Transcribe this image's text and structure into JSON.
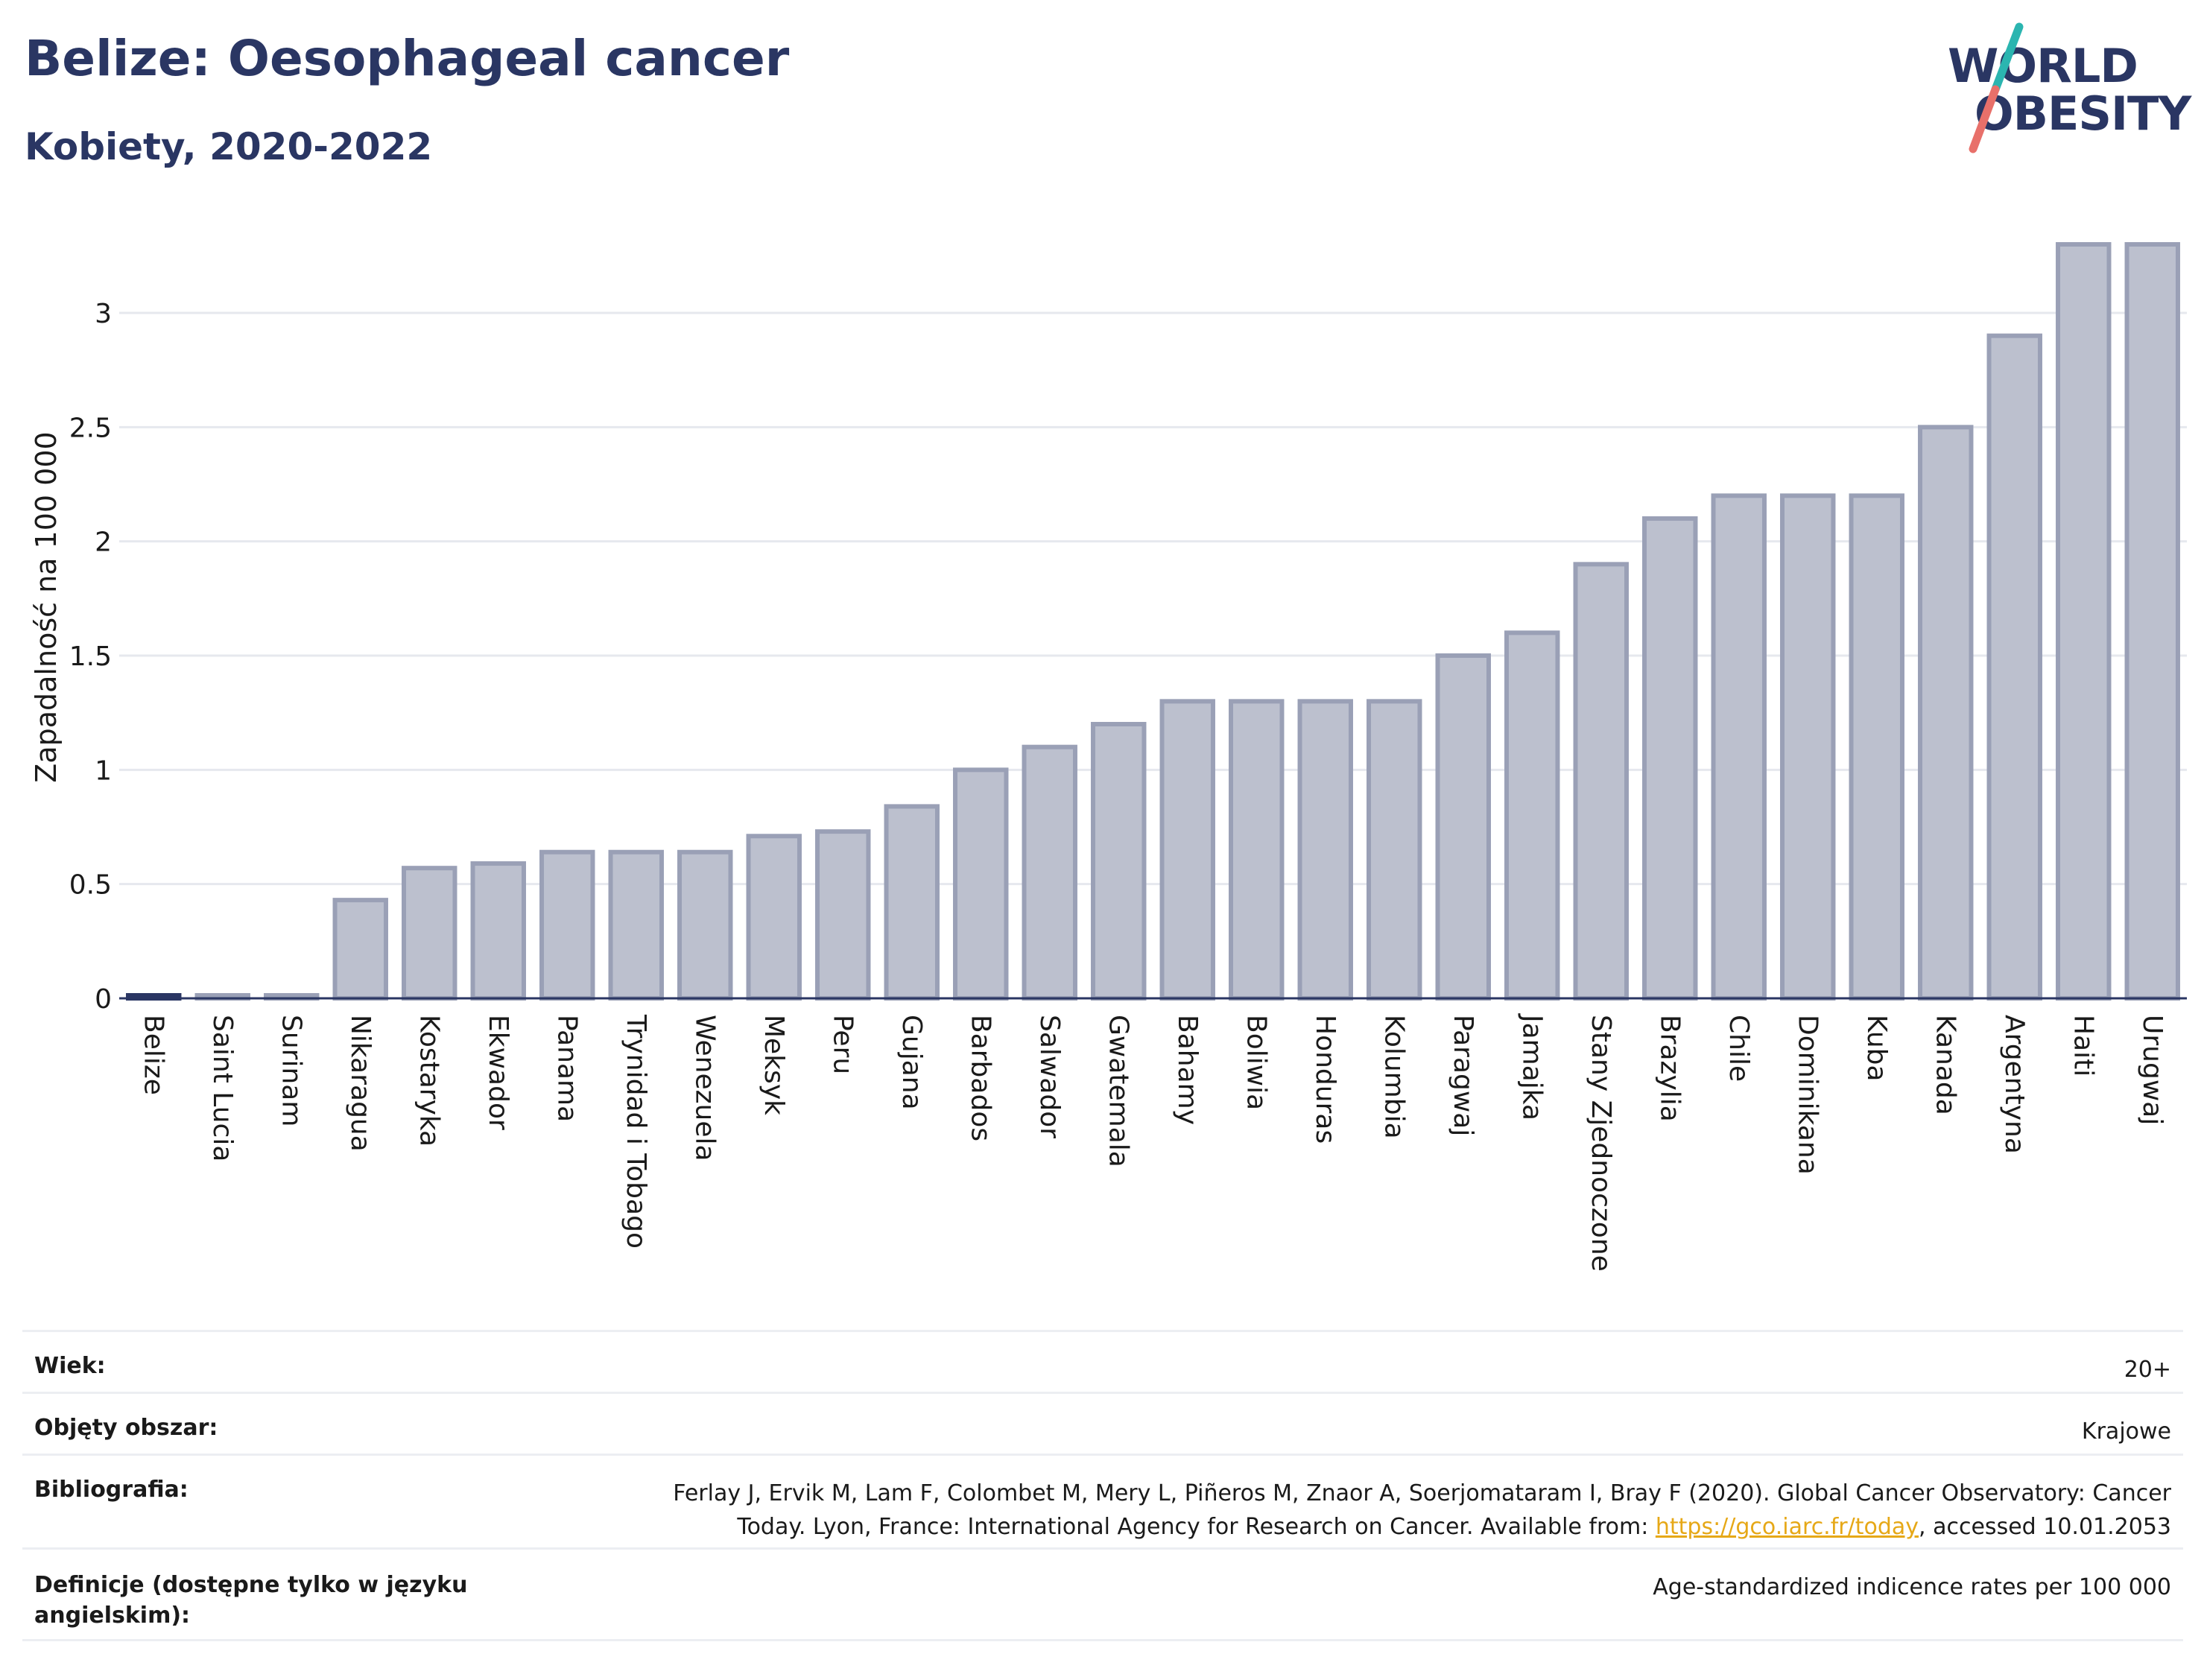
{
  "header": {
    "title": "Belize: Oesophageal cancer",
    "subtitle": "Kobiety, 2020-2022"
  },
  "logo": {
    "line1": "WORLD",
    "line2": "OBESITY",
    "colors": {
      "text": "#2a3663",
      "slash_top": "#2bb5b0",
      "slash_bottom": "#e8706a"
    }
  },
  "chart_data": {
    "type": "bar",
    "ylabel": "Zapadalność na 100 000",
    "xlabel": "",
    "ylim": [
      0,
      3.3
    ],
    "yticks": [
      0,
      0.5,
      1,
      1.5,
      2,
      2.5,
      3
    ],
    "ytick_labels": [
      "0",
      "0.5",
      "1",
      "1.5",
      "2",
      "2.5",
      "3"
    ],
    "grid": true,
    "highlight_category": "Belize",
    "colors": {
      "bar": "#bcc0ce",
      "bar_edge": "#9aa0b6",
      "highlight": "#2a3663",
      "grid": "#e6e8ee",
      "axis": "#2a3663"
    },
    "categories": [
      "Belize",
      "Saint Lucia",
      "Surinam",
      "Nikaragua",
      "Kostaryka",
      "Ekwador",
      "Panama",
      "Trynidad i Tobago",
      "Wenezuela",
      "Meksyk",
      "Peru",
      "Gujana",
      "Barbados",
      "Salwador",
      "Gwatemala",
      "Bahamy",
      "Boliwia",
      "Honduras",
      "Kolumbia",
      "Paragwaj",
      "Jamajka",
      "Stany Zjednoczone",
      "Brazylia",
      "Chile",
      "Dominikana",
      "Kuba",
      "Kanada",
      "Argentyna",
      "Haiti",
      "Urugwaj"
    ],
    "values": [
      0.01,
      0.01,
      0.01,
      0.43,
      0.57,
      0.59,
      0.64,
      0.64,
      0.64,
      0.71,
      0.73,
      0.84,
      1.0,
      1.1,
      1.2,
      1.3,
      1.3,
      1.3,
      1.3,
      1.5,
      1.6,
      1.9,
      2.1,
      2.2,
      2.2,
      2.2,
      2.5,
      2.9,
      3.3,
      3.3
    ]
  },
  "info_table": {
    "age_label": "Wiek:",
    "age_value": "20+",
    "coverage_label": "Objęty obszar:",
    "coverage_value": "Krajowe",
    "bibliography_label": "Bibliografia:",
    "bibliography_line1": "Ferlay J, Ervik M, Lam F, Colombet M, Mery L, Piñeros M, Znaor A, Soerjomataram I, Bray F (2020). Global Cancer Observatory: Cancer",
    "bibliography_line2_prefix": "Today. Lyon, France: International Agency for Research on Cancer. Available from: ",
    "bibliography_link": "https://gco.iarc.fr/today",
    "bibliography_line2_suffix": ", accessed 10.01.2053",
    "definitions_label": "Definicje (dostępne tylko w języku angielskim):",
    "definitions_value": "Age-standardized indicence rates per 100 000"
  }
}
